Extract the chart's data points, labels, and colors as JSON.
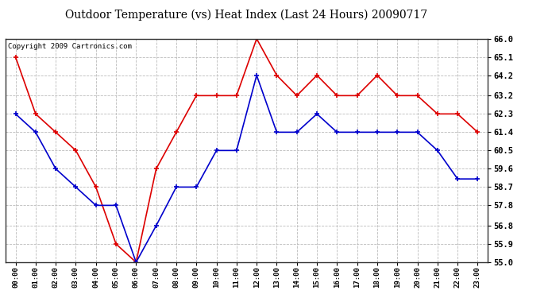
{
  "title": "Outdoor Temperature (vs) Heat Index (Last 24 Hours) 20090717",
  "copyright": "Copyright 2009 Cartronics.com",
  "hours": [
    "00:00",
    "01:00",
    "02:00",
    "03:00",
    "04:00",
    "05:00",
    "06:00",
    "07:00",
    "08:00",
    "09:00",
    "10:00",
    "11:00",
    "12:00",
    "13:00",
    "14:00",
    "15:00",
    "16:00",
    "17:00",
    "18:00",
    "19:00",
    "20:00",
    "21:00",
    "22:00",
    "23:00"
  ],
  "red_data": [
    65.1,
    62.3,
    61.4,
    60.5,
    58.7,
    55.9,
    55.0,
    59.6,
    61.4,
    63.2,
    63.2,
    63.2,
    66.0,
    64.2,
    63.2,
    64.2,
    63.2,
    63.2,
    64.2,
    63.2,
    63.2,
    62.3,
    62.3,
    61.4
  ],
  "blue_data": [
    62.3,
    61.4,
    59.6,
    58.7,
    57.8,
    57.8,
    55.0,
    56.8,
    58.7,
    58.7,
    60.5,
    60.5,
    64.2,
    61.4,
    61.4,
    62.3,
    61.4,
    61.4,
    61.4,
    61.4,
    61.4,
    60.5,
    59.1,
    59.1
  ],
  "ylim": [
    55.0,
    66.0
  ],
  "yticks": [
    55.0,
    55.9,
    56.8,
    57.8,
    58.7,
    59.6,
    60.5,
    61.4,
    62.3,
    63.2,
    64.2,
    65.1,
    66.0
  ],
  "red_color": "#dd0000",
  "blue_color": "#0000cc",
  "grid_color": "#bbbbbb",
  "bg_color": "#ffffff",
  "plot_bg_color": "#ffffff"
}
